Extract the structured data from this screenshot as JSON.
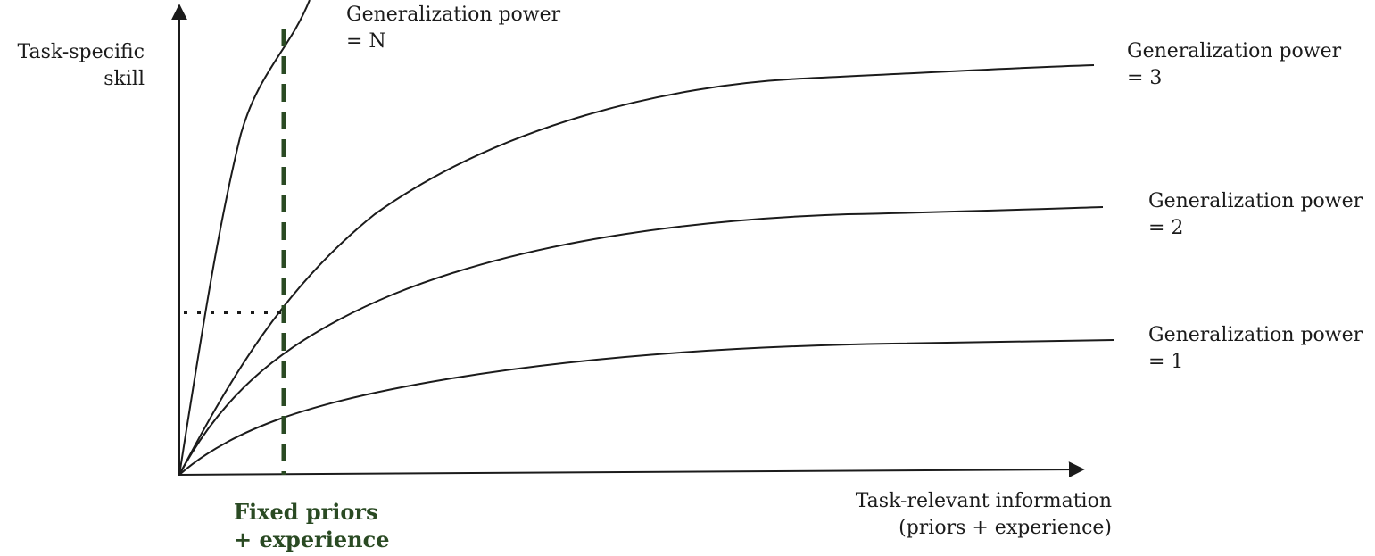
{
  "axes": {
    "y_label_line1": "Task-specific",
    "y_label_line2": "skill",
    "x_label_line1": "Task-relevant information",
    "x_label_line2": "(priors + experience)"
  },
  "curves": [
    {
      "id": "n",
      "label_line1": "Generalization power",
      "label_line2": "= N"
    },
    {
      "id": "3",
      "label_line1": "Generalization power",
      "label_line2": "= 3"
    },
    {
      "id": "2",
      "label_line1": "Generalization power",
      "label_line2": "= 2"
    },
    {
      "id": "1",
      "label_line1": "Generalization power",
      "label_line2": "= 1"
    }
  ],
  "marker": {
    "label_line1": "Fixed priors",
    "label_line2": "+ experience",
    "color": "#2a4a23"
  },
  "colors": {
    "curve": "#1b1b1b",
    "axis": "#1b1b1b",
    "reference": "#1b1b1b"
  }
}
